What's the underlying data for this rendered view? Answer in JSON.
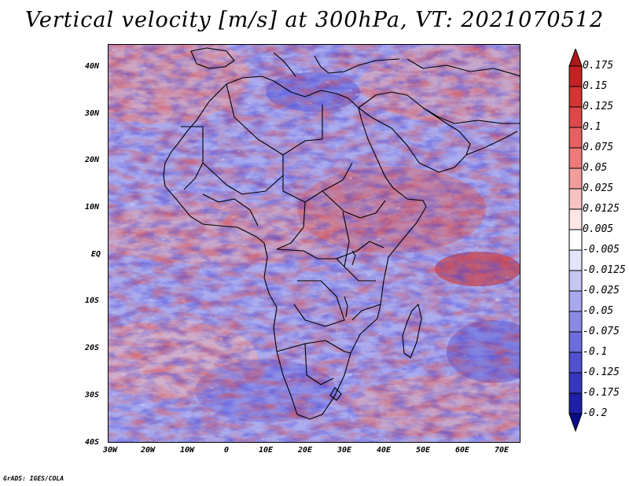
{
  "title": "Vertical velocity [m/s] at 300hPa, VT: 2021070512",
  "credit": "GrADS: IGES/COLA",
  "lat_labels": [
    "40N",
    "30N",
    "20N",
    "10N",
    "EQ",
    "10S",
    "20S",
    "30S",
    "40S"
  ],
  "lon_labels": [
    "30W",
    "20W",
    "10W",
    "0",
    "10E",
    "20E",
    "30E",
    "40E",
    "50E",
    "60E",
    "70E"
  ],
  "colorbar": {
    "labels": [
      "0.175",
      "0.15",
      "0.125",
      "0.1",
      "0.075",
      "0.05",
      "0.025",
      "0.0125",
      "0.005",
      "-0.005",
      "-0.0125",
      "-0.025",
      "-0.05",
      "-0.075",
      "-0.1",
      "-0.125",
      "-0.175",
      "-0.2"
    ],
    "colors": [
      "#b01818",
      "#c42222",
      "#d63434",
      "#e04848",
      "#e86060",
      "#ee7a7a",
      "#f29c9c",
      "#f8c2c2",
      "#fde6e6",
      "#ffffff",
      "#e4e4fa",
      "#c6c6f4",
      "#a8a8ee",
      "#8a8ae6",
      "#6c6cdc",
      "#5050d0",
      "#3636c0",
      "#1e1ea8",
      "#0c0c8c"
    ]
  },
  "chart_data": {
    "type": "heatmap",
    "title": "Vertical velocity [m/s] at 300hPa, VT: 2021070512",
    "variable": "Vertical velocity",
    "units": "m/s",
    "level": "300hPa",
    "valid_time": "2021070512",
    "x_ticks": [
      "30W",
      "20W",
      "10W",
      "0",
      "10E",
      "20E",
      "30E",
      "40E",
      "50E",
      "60E",
      "70E"
    ],
    "y_ticks": [
      "40N",
      "30N",
      "20N",
      "10N",
      "EQ",
      "10S",
      "20S",
      "30S",
      "40S"
    ],
    "lon_range": [
      -30,
      75
    ],
    "lat_range": [
      -40,
      45
    ],
    "contour_levels": [
      -0.2,
      -0.175,
      -0.125,
      -0.1,
      -0.075,
      -0.05,
      -0.025,
      -0.0125,
      -0.005,
      0.005,
      0.0125,
      0.025,
      0.05,
      0.075,
      0.1,
      0.125,
      0.15,
      0.175
    ]
  }
}
